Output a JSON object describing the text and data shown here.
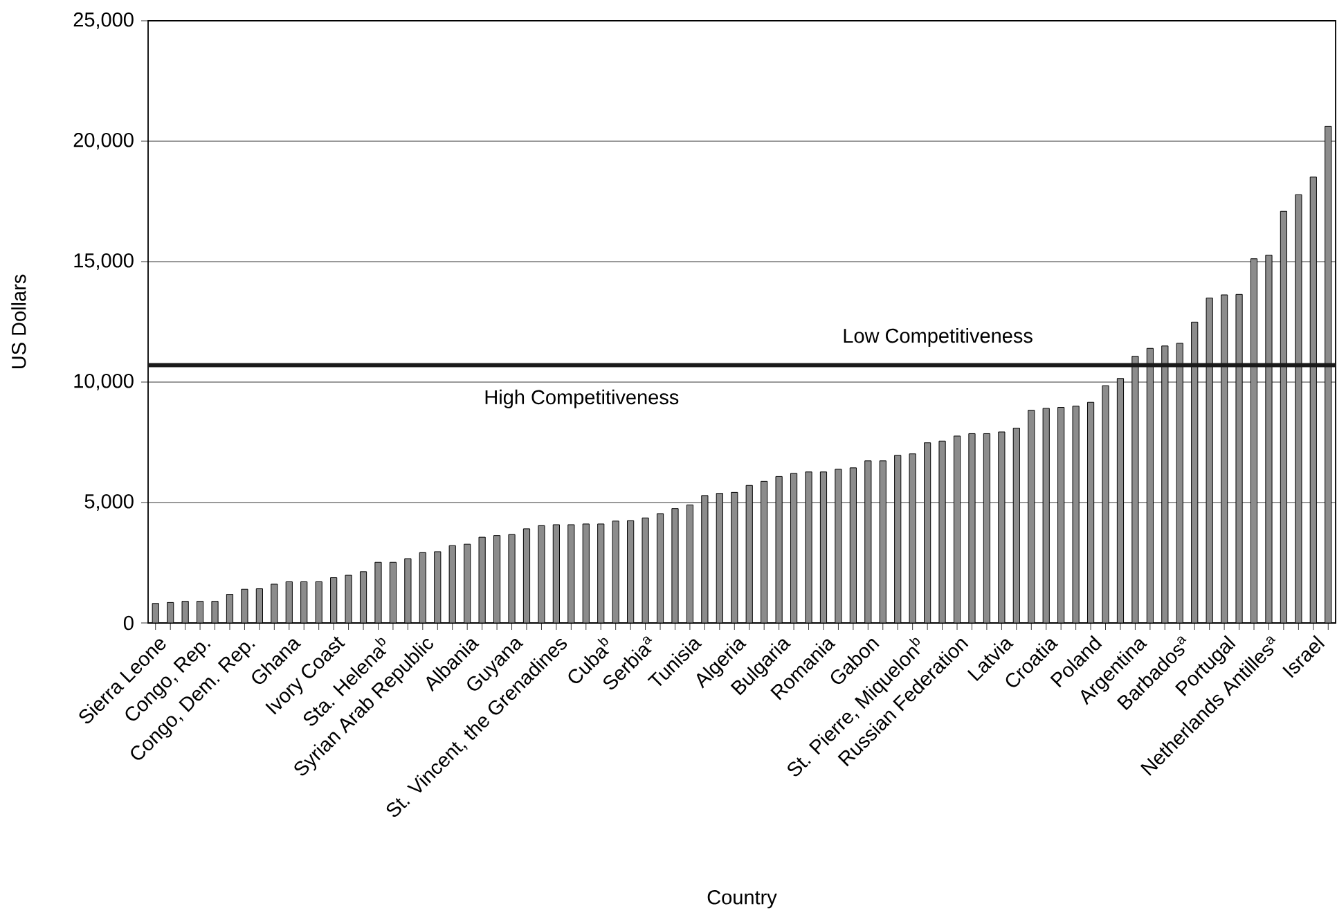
{
  "chart_data": {
    "type": "bar",
    "xlabel": "Country",
    "ylabel": "US Dollars",
    "categories": [
      "Sierra Leone",
      null,
      null,
      "Congo, Rep.",
      null,
      null,
      "Congo, Dem. Rep.",
      null,
      null,
      "Ghana",
      null,
      null,
      "Ivory Coast",
      null,
      null,
      "Sta. Helena$^{b}$",
      null,
      null,
      "Syrian Arab Republic",
      null,
      null,
      "Albania",
      null,
      null,
      "Guyana",
      null,
      null,
      "St. Vincent, the Grenadines",
      null,
      null,
      "Cuba$^{b}$",
      null,
      null,
      "Serbia$^{a}$",
      null,
      null,
      "Tunisia",
      null,
      null,
      "Algeria",
      null,
      null,
      "Bulgaria",
      null,
      null,
      "Romania",
      null,
      null,
      "Gabon",
      null,
      null,
      "St. Pierre, Miquelon$^{b}$",
      null,
      null,
      "Russian Federation",
      null,
      null,
      "Latvia",
      null,
      null,
      "Croatia",
      null,
      null,
      "Poland",
      null,
      null,
      "Argentina",
      null,
      null,
      "Barbados$^{a}$",
      null,
      null,
      "Portugal",
      null,
      null,
      "Netherlands Antilles$^{a}$",
      null,
      null,
      "Israel",
      null
    ],
    "values": [
      810,
      850,
      900,
      900,
      900,
      1190,
      1400,
      1420,
      1610,
      1710,
      1710,
      1710,
      1880,
      1980,
      2130,
      2520,
      2520,
      2670,
      2920,
      2960,
      3210,
      3270,
      3560,
      3630,
      3670,
      3910,
      4040,
      4080,
      4080,
      4110,
      4110,
      4230,
      4250,
      4360,
      4540,
      4750,
      4900,
      5290,
      5380,
      5420,
      5710,
      5880,
      6080,
      6210,
      6270,
      6270,
      6380,
      6440,
      6730,
      6730,
      6960,
      7020,
      7480,
      7550,
      7760,
      7860,
      7860,
      7930,
      8090,
      8830,
      8910,
      8950,
      9000,
      9160,
      9850,
      10150,
      11070,
      11400,
      11500,
      11610,
      12490,
      13490,
      13620,
      13640,
      15120,
      15270,
      17090,
      17780,
      18510,
      20620
    ],
    "color": "#8c8c8c",
    "ylim": [
      0,
      25000
    ],
    "yticks": [
      {
        "value": 0,
        "label": "0"
      },
      {
        "value": 5000,
        "label": "5,000"
      },
      {
        "value": 10000,
        "label": "10,000"
      },
      {
        "value": 15000,
        "label": "15,000"
      },
      {
        "value": 20000,
        "label": "20,000"
      },
      {
        "value": 25000,
        "label": "25,000"
      }
    ],
    "grid": "y",
    "ref_lines": [
      {
        "axis": "y",
        "value": 10700,
        "color": "#1a1a1a"
      }
    ],
    "annotations": [
      "Low Competitiveness",
      "High Competitiveness"
    ]
  }
}
